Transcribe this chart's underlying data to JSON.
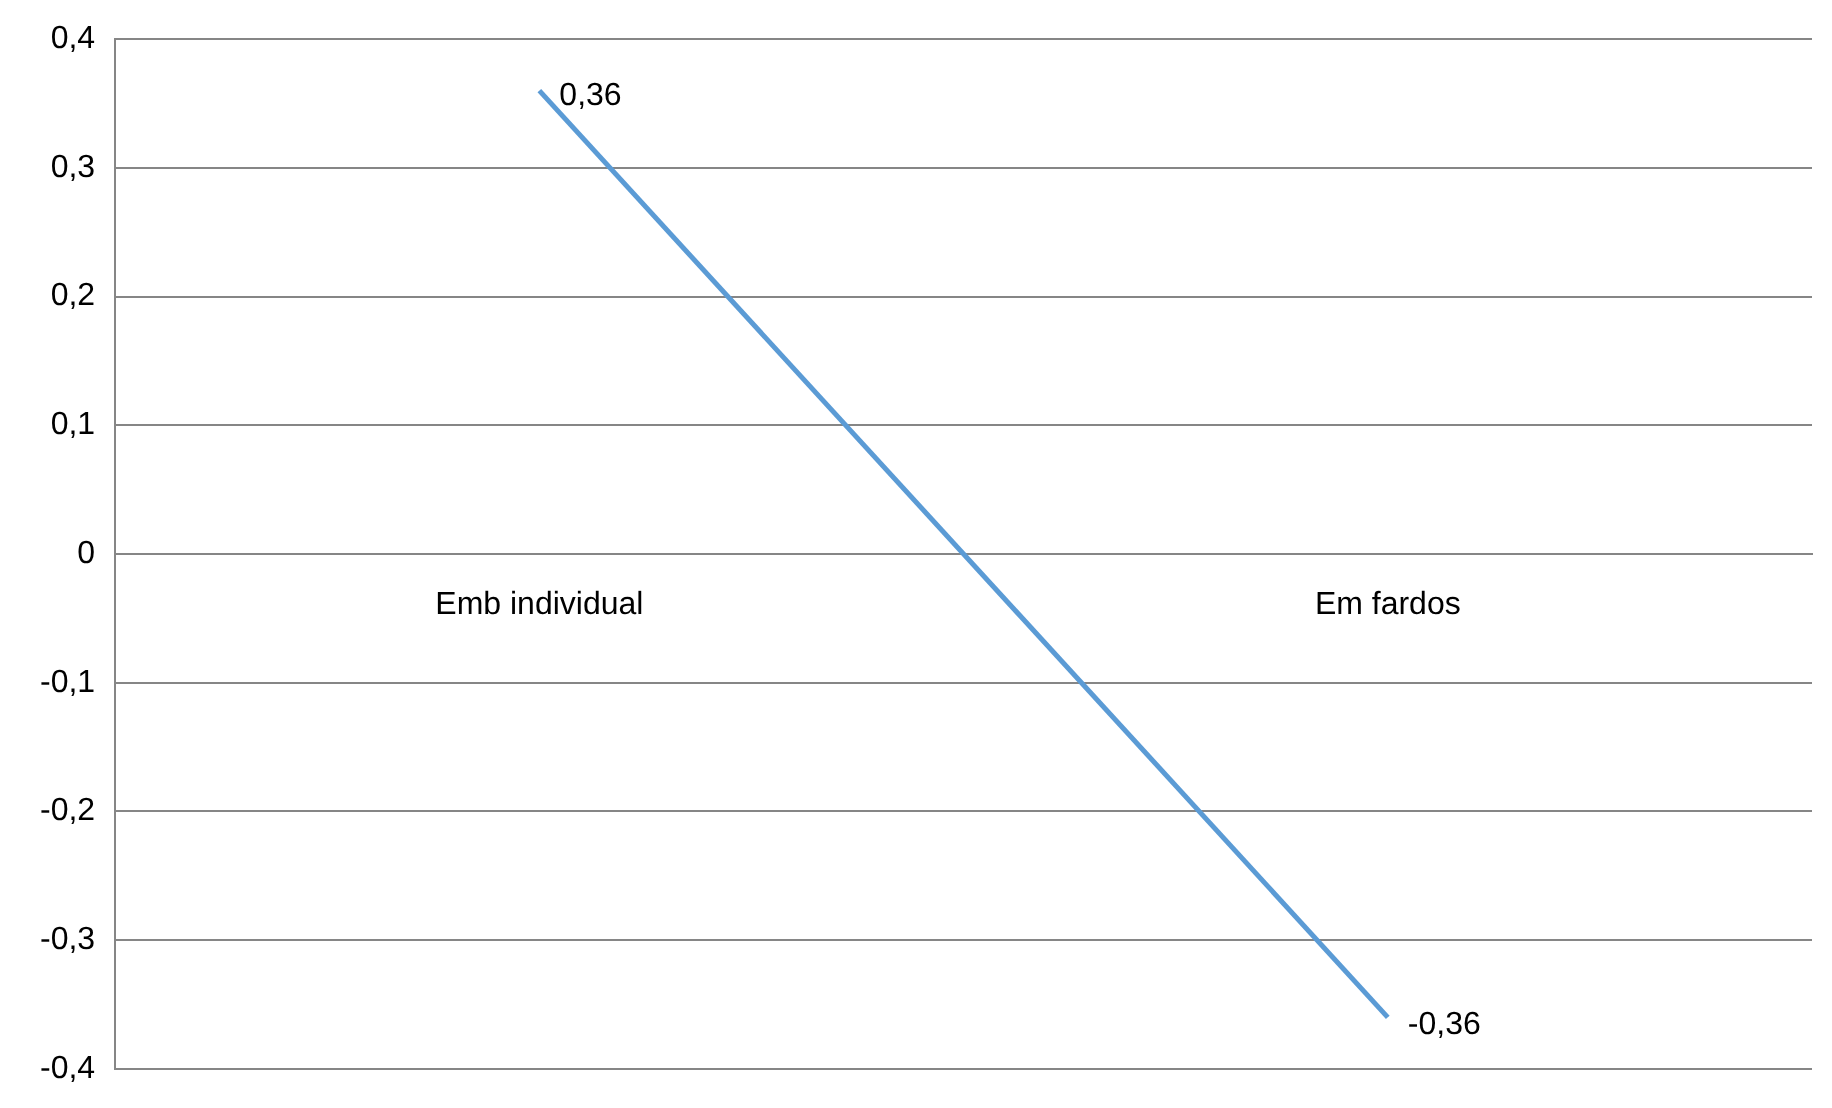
{
  "chart_data": {
    "type": "line",
    "categories": [
      "Emb individual",
      "Em fardos"
    ],
    "values": [
      0.36,
      -0.36
    ],
    "color": "#5b9bd5",
    "value_labels": [
      "0,36",
      "-0,36"
    ],
    "ylim": [
      -0.4,
      0.4
    ],
    "yticks": [
      {
        "value": -0.4,
        "label": "-0,4"
      },
      {
        "value": -0.3,
        "label": "-0,3"
      },
      {
        "value": -0.2,
        "label": "-0,2"
      },
      {
        "value": -0.1,
        "label": "-0,1"
      },
      0,
      {
        "value": 0.1,
        "label": "0,1"
      },
      {
        "value": 0.2,
        "label": "0,2"
      },
      {
        "value": 0.3,
        "label": "0,3"
      },
      {
        "value": 0.4,
        "label": "0,4"
      }
    ],
    "grid": "y",
    "marker": "none",
    "line_style": "solid"
  }
}
